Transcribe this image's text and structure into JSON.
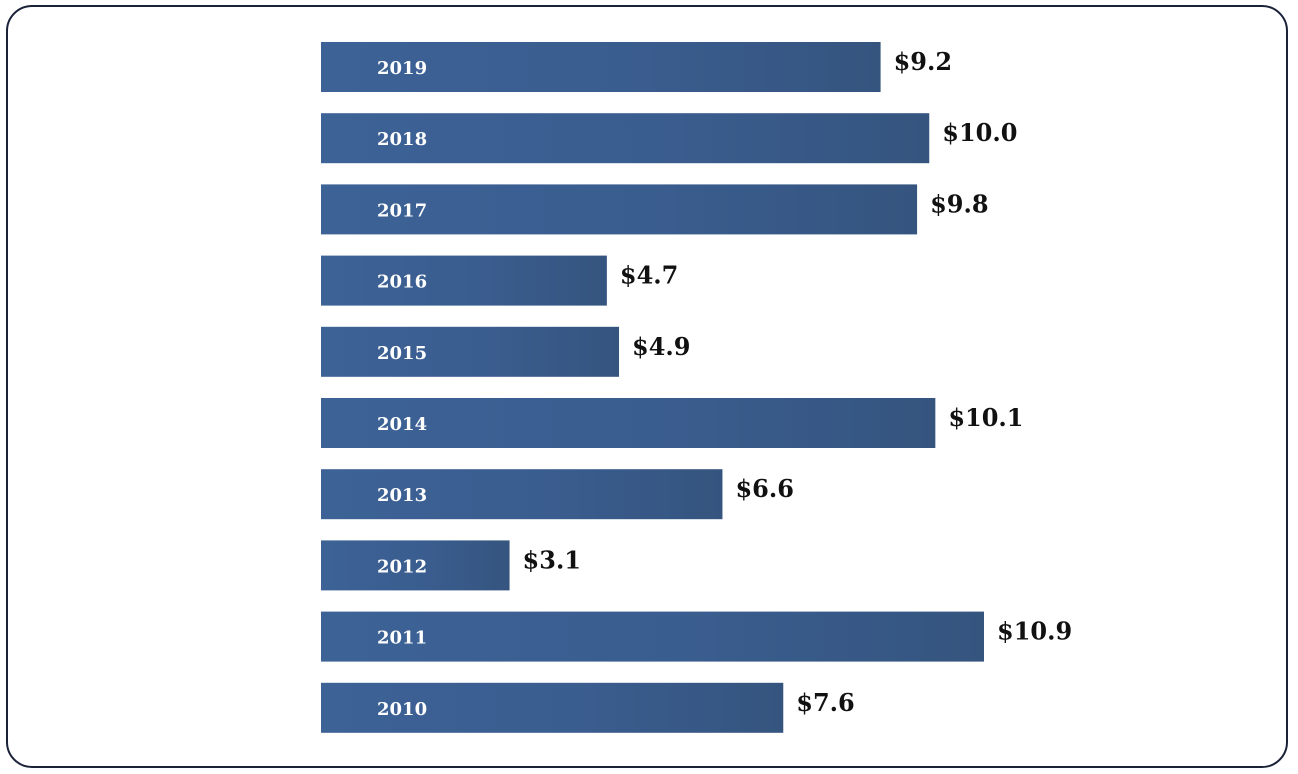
{
  "chart_data": {
    "type": "bar",
    "orientation": "horizontal",
    "categories": [
      "2019",
      "2018",
      "2017",
      "2016",
      "2015",
      "2014",
      "2013",
      "2012",
      "2011",
      "2010"
    ],
    "values": [
      9.2,
      10.0,
      9.8,
      4.7,
      4.9,
      10.1,
      6.6,
      3.1,
      10.9,
      7.6
    ],
    "value_labels": [
      "$9.2",
      "$10.0",
      "$9.8",
      "$4.7",
      "$4.9",
      "$10.1",
      "$6.6",
      "$3.1",
      "$10.9",
      "$7.6"
    ],
    "title": "",
    "xlabel": "",
    "ylabel": "",
    "xlim": [
      0,
      10.9
    ],
    "grid": false,
    "legend": "none",
    "bar_color": "#3a5f92"
  }
}
